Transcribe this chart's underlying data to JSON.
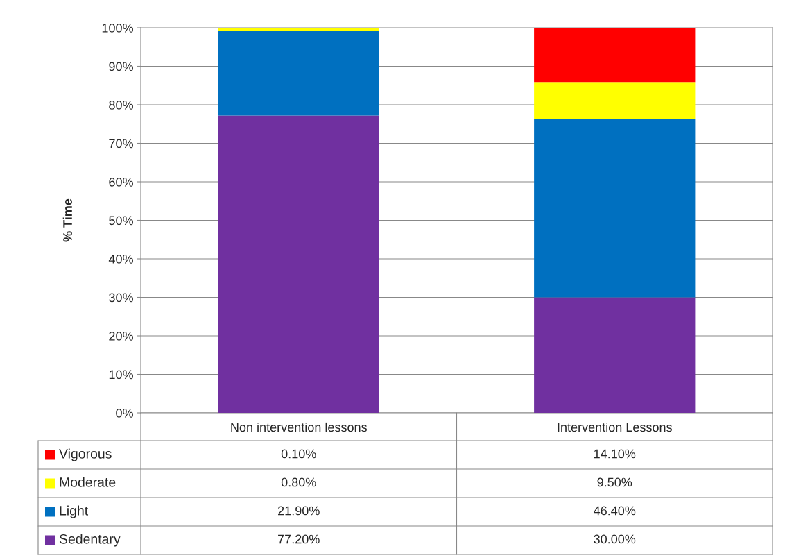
{
  "chart_data": {
    "type": "bar",
    "stacked": true,
    "ylabel": "% Time",
    "categories": [
      "Non intervention lessons",
      "Intervention Lessons"
    ],
    "series": [
      {
        "name": "Sedentary",
        "color": "#7030a0",
        "values": [
          77.2,
          30.0
        ],
        "value_labels": [
          "77.20%",
          "30.00%"
        ]
      },
      {
        "name": "Light",
        "color": "#0070c0",
        "values": [
          21.9,
          46.4
        ],
        "value_labels": [
          "21.90%",
          "46.40%"
        ]
      },
      {
        "name": "Moderate",
        "color": "#ffff00",
        "values": [
          0.8,
          9.5
        ],
        "value_labels": [
          "0.80%",
          "9.50%"
        ]
      },
      {
        "name": "Vigorous",
        "color": "#ff0000",
        "values": [
          0.1,
          14.1
        ],
        "value_labels": [
          "0.10%",
          "14.10%"
        ]
      }
    ],
    "ylim": [
      0,
      100
    ],
    "yticks": [
      {
        "value": 0,
        "label": "0%"
      },
      {
        "value": 10,
        "label": "10%"
      },
      {
        "value": 20,
        "label": "20%"
      },
      {
        "value": 30,
        "label": "30%"
      },
      {
        "value": 40,
        "label": "40%"
      },
      {
        "value": 50,
        "label": "50%"
      },
      {
        "value": 60,
        "label": "60%"
      },
      {
        "value": 70,
        "label": "70%"
      },
      {
        "value": 80,
        "label": "80%"
      },
      {
        "value": 90,
        "label": "90%"
      },
      {
        "value": 100,
        "label": "100%"
      }
    ],
    "grid": "y",
    "legend": "bottom"
  }
}
